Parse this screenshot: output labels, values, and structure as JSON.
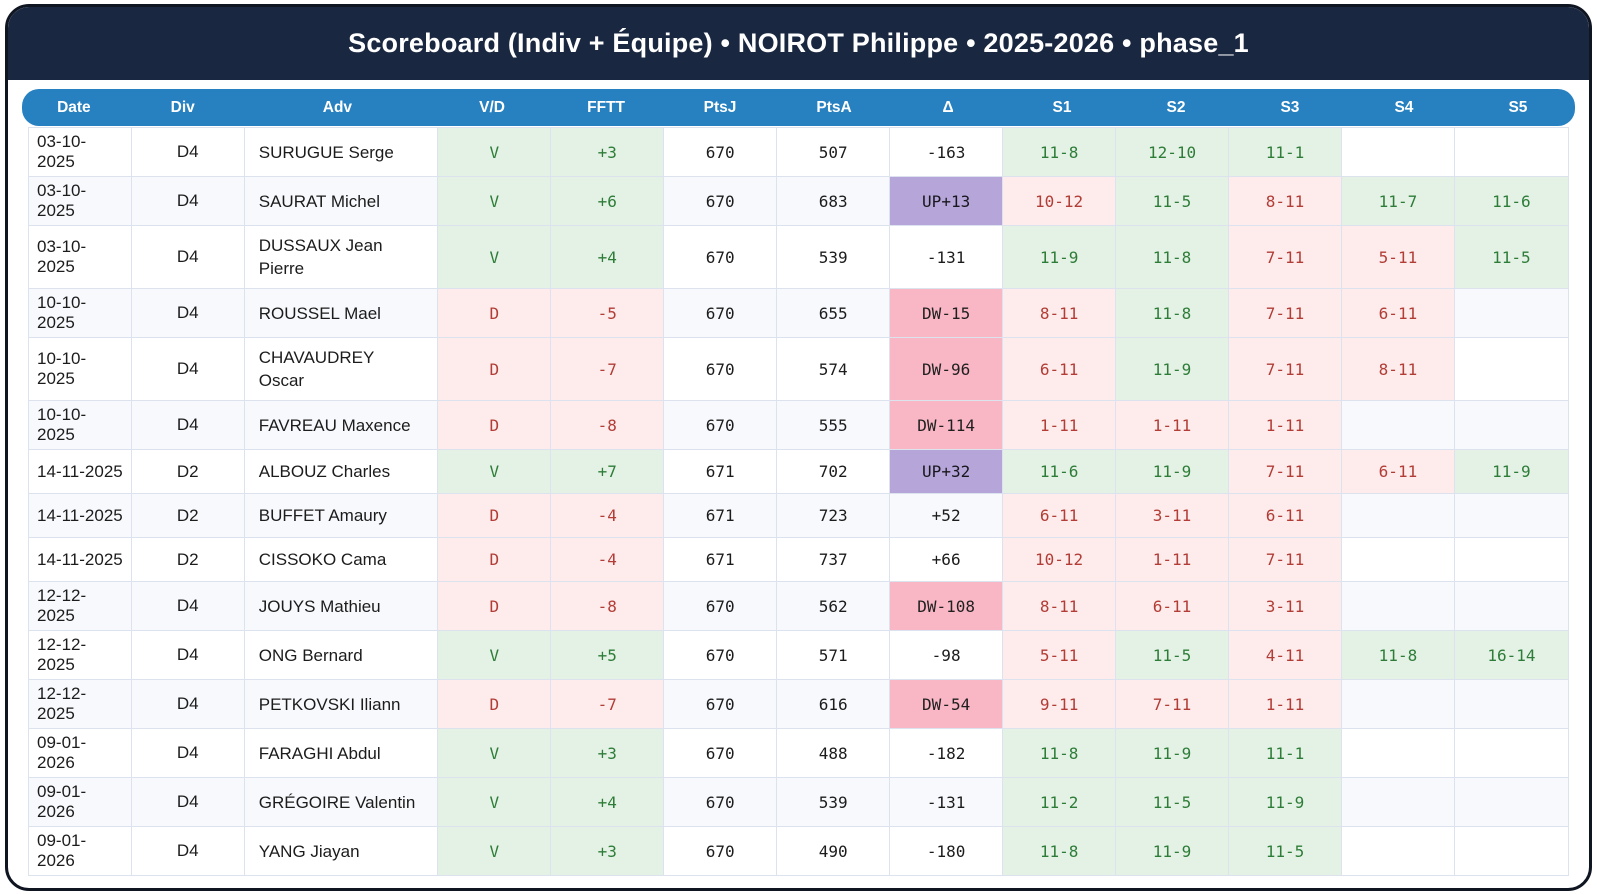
{
  "title": "Scoreboard (Indiv + Équipe) • NOIROT Philippe • 2025-2026 • phase_1",
  "colors": {
    "title_bar_bg": "#192740",
    "header_bg": "#2781c1",
    "win_bg": "#e4f1e5",
    "win_text": "#2d7d38",
    "loss_bg": "#fdeceb",
    "loss_text": "#b23c36",
    "up_badge_bg": "#b6a5d9",
    "down_badge_bg": "#f9b7c6",
    "alt_row_bg": "#f7f9fc",
    "grid_line": "#dce3ee"
  },
  "table": {
    "columns": [
      "Date",
      "Div",
      "Adv",
      "V/D",
      "FFTT",
      "PtsJ",
      "PtsA",
      "Δ",
      "S1",
      "S2",
      "S3",
      "S4",
      "S5"
    ],
    "rows": [
      {
        "date": "03-10-2025",
        "div": "D4",
        "adv": "SURUGUE Serge",
        "vd": "V",
        "fftt": "+3",
        "ptsj": "670",
        "ptsa": "507",
        "delta": "-163",
        "sets": [
          "11-8",
          "12-10",
          "11-1",
          "",
          ""
        ]
      },
      {
        "date": "03-10-2025",
        "div": "D4",
        "adv": "SAURAT Michel",
        "vd": "V",
        "fftt": "+6",
        "ptsj": "670",
        "ptsa": "683",
        "delta": "UP+13",
        "sets": [
          "10-12",
          "11-5",
          "8-11",
          "11-7",
          "11-6"
        ]
      },
      {
        "date": "03-10-2025",
        "div": "D4",
        "adv": "DUSSAUX Jean Pierre",
        "vd": "V",
        "fftt": "+4",
        "ptsj": "670",
        "ptsa": "539",
        "delta": "-131",
        "sets": [
          "11-9",
          "11-8",
          "7-11",
          "5-11",
          "11-5"
        ]
      },
      {
        "date": "10-10-2025",
        "div": "D4",
        "adv": "ROUSSEL Mael",
        "vd": "D",
        "fftt": "-5",
        "ptsj": "670",
        "ptsa": "655",
        "delta": "DW-15",
        "sets": [
          "8-11",
          "11-8",
          "7-11",
          "6-11",
          ""
        ]
      },
      {
        "date": "10-10-2025",
        "div": "D4",
        "adv": "CHAVAUDREY Oscar",
        "vd": "D",
        "fftt": "-7",
        "ptsj": "670",
        "ptsa": "574",
        "delta": "DW-96",
        "sets": [
          "6-11",
          "11-9",
          "7-11",
          "8-11",
          ""
        ]
      },
      {
        "date": "10-10-2025",
        "div": "D4",
        "adv": "FAVREAU Maxence",
        "vd": "D",
        "fftt": "-8",
        "ptsj": "670",
        "ptsa": "555",
        "delta": "DW-114",
        "sets": [
          "1-11",
          "1-11",
          "1-11",
          "",
          ""
        ]
      },
      {
        "date": "14-11-2025",
        "div": "D2",
        "adv": "ALBOUZ Charles",
        "vd": "V",
        "fftt": "+7",
        "ptsj": "671",
        "ptsa": "702",
        "delta": "UP+32",
        "sets": [
          "11-6",
          "11-9",
          "7-11",
          "6-11",
          "11-9"
        ]
      },
      {
        "date": "14-11-2025",
        "div": "D2",
        "adv": "BUFFET Amaury",
        "vd": "D",
        "fftt": "-4",
        "ptsj": "671",
        "ptsa": "723",
        "delta": "+52",
        "sets": [
          "6-11",
          "3-11",
          "6-11",
          "",
          ""
        ]
      },
      {
        "date": "14-11-2025",
        "div": "D2",
        "adv": "CISSOKO Cama",
        "vd": "D",
        "fftt": "-4",
        "ptsj": "671",
        "ptsa": "737",
        "delta": "+66",
        "sets": [
          "10-12",
          "1-11",
          "7-11",
          "",
          ""
        ]
      },
      {
        "date": "12-12-2025",
        "div": "D4",
        "adv": "JOUYS Mathieu",
        "vd": "D",
        "fftt": "-8",
        "ptsj": "670",
        "ptsa": "562",
        "delta": "DW-108",
        "sets": [
          "8-11",
          "6-11",
          "3-11",
          "",
          ""
        ]
      },
      {
        "date": "12-12-2025",
        "div": "D4",
        "adv": "ONG Bernard",
        "vd": "V",
        "fftt": "+5",
        "ptsj": "670",
        "ptsa": "571",
        "delta": "-98",
        "sets": [
          "5-11",
          "11-5",
          "4-11",
          "11-8",
          "16-14"
        ]
      },
      {
        "date": "12-12-2025",
        "div": "D4",
        "adv": "PETKOVSKI Iliann",
        "vd": "D",
        "fftt": "-7",
        "ptsj": "670",
        "ptsa": "616",
        "delta": "DW-54",
        "sets": [
          "9-11",
          "7-11",
          "1-11",
          "",
          ""
        ]
      },
      {
        "date": "09-01-2026",
        "div": "D4",
        "adv": "FARAGHI Abdul",
        "vd": "V",
        "fftt": "+3",
        "ptsj": "670",
        "ptsa": "488",
        "delta": "-182",
        "sets": [
          "11-8",
          "11-9",
          "11-1",
          "",
          ""
        ]
      },
      {
        "date": "09-01-2026",
        "div": "D4",
        "adv": "GRÉGOIRE Valentin",
        "vd": "V",
        "fftt": "+4",
        "ptsj": "670",
        "ptsa": "539",
        "delta": "-131",
        "sets": [
          "11-2",
          "11-5",
          "11-9",
          "",
          ""
        ]
      },
      {
        "date": "09-01-2026",
        "div": "D4",
        "adv": "YANG Jiayan",
        "vd": "V",
        "fftt": "+3",
        "ptsj": "670",
        "ptsa": "490",
        "delta": "-180",
        "sets": [
          "11-8",
          "11-9",
          "11-5",
          "",
          ""
        ]
      }
    ]
  }
}
